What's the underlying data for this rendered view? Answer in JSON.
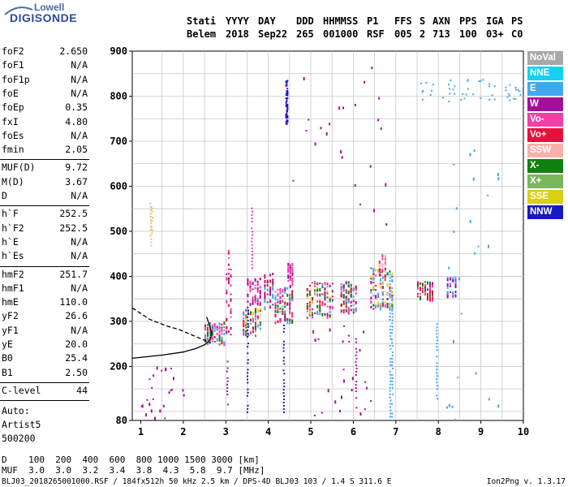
{
  "logo": {
    "top": "Lowell",
    "main": "DIGISONDE"
  },
  "header": {
    "labels": [
      "Stati",
      "YYYY",
      "DAY",
      "DDD",
      "HHMMSS",
      "P1",
      "FFS",
      "S",
      "AXN",
      "PPS",
      "IGA",
      "PS"
    ],
    "values": [
      "Belem",
      "2018",
      "Sep22",
      "265",
      "001000",
      "RSF",
      "005",
      "2",
      "713",
      "100",
      "03+",
      "C0"
    ]
  },
  "params": {
    "group1": [
      {
        "name": "foF2",
        "value": "2.650"
      },
      {
        "name": "foF1",
        "value": "N/A"
      },
      {
        "name": "foF1p",
        "value": "N/A"
      },
      {
        "name": "foE",
        "value": "N/A"
      },
      {
        "name": "foEp",
        "value": "0.35"
      },
      {
        "name": "fxI",
        "value": "4.80"
      },
      {
        "name": "foEs",
        "value": "N/A"
      },
      {
        "name": "fmin",
        "value": "2.05"
      }
    ],
    "group2": [
      {
        "name": "MUF(D)",
        "value": "9.72"
      },
      {
        "name": "M(D)",
        "value": "3.67"
      },
      {
        "name": "D",
        "value": "N/A"
      }
    ],
    "group3": [
      {
        "name": "h`F",
        "value": "252.5"
      },
      {
        "name": "h`F2",
        "value": "252.5"
      },
      {
        "name": "h`E",
        "value": "N/A"
      },
      {
        "name": "h`Es",
        "value": "N/A"
      }
    ],
    "group4": [
      {
        "name": "hmF2",
        "value": "251.7"
      },
      {
        "name": "hmF1",
        "value": "N/A"
      },
      {
        "name": "hmE",
        "value": "110.0"
      },
      {
        "name": "yF2",
        "value": "26.6"
      },
      {
        "name": "yF1",
        "value": "N/A"
      },
      {
        "name": "yE",
        "value": "20.0"
      },
      {
        "name": "B0",
        "value": "25.4"
      },
      {
        "name": "B1",
        "value": "2.50"
      }
    ],
    "group5": [
      {
        "name": "C-level",
        "value": "44"
      }
    ]
  },
  "autoscale": {
    "line1": "Auto:",
    "line2": "Artist5",
    "line3": "500200"
  },
  "legend": [
    {
      "label": "NoVal",
      "color": "#a8a8a8"
    },
    {
      "label": "NNE",
      "color": "#16d0f0"
    },
    {
      "label": "E",
      "color": "#40a8f0"
    },
    {
      "label": "W",
      "color": "#a0109a"
    },
    {
      "label": "Vo-",
      "color": "#f040a8"
    },
    {
      "label": "Vo+",
      "color": "#e8103c"
    },
    {
      "label": "SSW",
      "color": "#f8b0a8"
    },
    {
      "label": "X-",
      "color": "#108010"
    },
    {
      "label": "X+",
      "color": "#78b858"
    },
    {
      "label": "SSE",
      "color": "#d8d010"
    },
    {
      "label": "NNW",
      "color": "#1818c0"
    }
  ],
  "footer": {
    "d_row": "D    100  200  400  600  800 1000 1500 3000 [km]",
    "muf_row": "MUF  3.0  3.0  3.2  3.4  3.8  4.3  5.8  9.7 [MHz]",
    "file_info": "BLJ03_2018265001000.RSF / 184fx512h 50 kHz 2.5 km / DPS-4D BLJ03 103 / 1.4 S 311.6 E",
    "version": "Ion2Png v. 1.3.17"
  },
  "chart_data": {
    "type": "scatter",
    "xlim": [
      0.8,
      10.0
    ],
    "ylim": [
      80,
      900
    ],
    "x_ticks": [
      "1",
      "2",
      "3",
      "4",
      "5",
      "6",
      "7",
      "8",
      "9",
      "10"
    ],
    "y_ticks": [
      "80",
      "200",
      "300",
      "400",
      "500",
      "600",
      "700",
      "800",
      "900"
    ],
    "y_tick_values": [
      80,
      200,
      300,
      400,
      500,
      600,
      700,
      800,
      900
    ],
    "grid": true,
    "grid_x_minor": [
      1.5,
      2,
      2.5,
      3,
      3.5,
      4,
      4.5,
      5,
      5.5,
      6,
      6.5,
      7,
      7.5,
      8,
      8.5,
      9,
      9.5
    ],
    "grid_y_minor": [
      100,
      150,
      200,
      250,
      300,
      350,
      400,
      450,
      500,
      550,
      600,
      650,
      700,
      750,
      800,
      850
    ],
    "clusters": [
      {
        "x": [
          2.5,
          3.0
        ],
        "y": [
          250,
          300
        ],
        "colors": [
          "#e8103c",
          "#f040a8",
          "#40a8f0",
          "#108010"
        ]
      },
      {
        "x": [
          3.0,
          3.15
        ],
        "y": [
          270,
          460
        ],
        "colors": [
          "#a0109a",
          "#f040a8",
          "#e8103c"
        ]
      },
      {
        "x": [
          3.4,
          3.85
        ],
        "y": [
          270,
          330
        ],
        "colors": [
          "#108010",
          "#f040a8",
          "#40a8f0",
          "#d8d010",
          "#e8103c"
        ]
      },
      {
        "x": [
          3.5,
          3.85
        ],
        "y": [
          340,
          400
        ],
        "colors": [
          "#a0109a",
          "#f040a8"
        ]
      },
      {
        "x": [
          3.9,
          4.15
        ],
        "y": [
          330,
          410
        ],
        "colors": [
          "#a0109a",
          "#40a8f0",
          "#e8103c"
        ]
      },
      {
        "x": [
          4.15,
          4.6
        ],
        "y": [
          300,
          380
        ],
        "colors": [
          "#108010",
          "#a0109a",
          "#f040a8",
          "#40a8f0",
          "#e8103c"
        ]
      },
      {
        "x": [
          4.4,
          4.45
        ],
        "y": [
          740,
          840
        ],
        "colors": [
          "#1818c0",
          "#a0109a"
        ]
      },
      {
        "x": [
          4.45,
          4.6
        ],
        "y": [
          380,
          430
        ],
        "colors": [
          "#a0109a",
          "#f040a8"
        ]
      },
      {
        "x": [
          4.9,
          5.55
        ],
        "y": [
          310,
          390
        ],
        "colors": [
          "#108010",
          "#a0109a",
          "#e8103c",
          "#40a8f0",
          "#f040a8",
          "#d8d010"
        ]
      },
      {
        "x": [
          5.7,
          6.1
        ],
        "y": [
          320,
          390
        ],
        "colors": [
          "#108010",
          "#a0109a",
          "#e8103c",
          "#f040a8",
          "#40a8f0"
        ]
      },
      {
        "x": [
          6.4,
          6.95
        ],
        "y": [
          330,
          420
        ],
        "colors": [
          "#e8103c",
          "#f040a8",
          "#a0109a",
          "#108010",
          "#40a8f0",
          "#d8d010"
        ]
      },
      {
        "x": [
          6.6,
          6.8
        ],
        "y": [
          400,
          450
        ],
        "colors": [
          "#f040a8",
          "#e8103c",
          "#f8b0a8"
        ]
      },
      {
        "x": [
          7.5,
          7.9
        ],
        "y": [
          350,
          390
        ],
        "colors": [
          "#a0109a",
          "#f040a8",
          "#e8103c",
          "#108010"
        ]
      },
      {
        "x": [
          8.2,
          8.45
        ],
        "y": [
          355,
          400
        ],
        "colors": [
          "#40a8f0",
          "#a0109a"
        ]
      }
    ],
    "columns": [
      {
        "x": 1.22,
        "y": [
          470,
          570
        ],
        "color": "#f8b0a8"
      },
      {
        "x": 1.25,
        "y": [
          490,
          560
        ],
        "color": "#d8d010"
      },
      {
        "x": 3.5,
        "y": [
          100,
          340
        ],
        "color": "#1818c0"
      },
      {
        "x": 4.35,
        "y": [
          100,
          300
        ],
        "color": "#1818c0"
      },
      {
        "x": 4.42,
        "y": [
          740,
          840
        ],
        "color": "#1818c0"
      },
      {
        "x": 6.85,
        "y": [
          90,
          420
        ],
        "color": "#40a8f0"
      },
      {
        "x": 6.9,
        "y": [
          90,
          340
        ],
        "color": "#40a8f0"
      },
      {
        "x": 7.95,
        "y": [
          130,
          310
        ],
        "color": "#40a8f0"
      },
      {
        "x": 6.05,
        "y": [
          110,
          270
        ],
        "color": "#a0109a"
      },
      {
        "x": 3.6,
        "y": [
          420,
          560
        ],
        "color": "#f040a8"
      },
      {
        "x": 3.02,
        "y": [
          110,
          220
        ],
        "color": "#a0109a"
      }
    ],
    "sparse_top_right": {
      "x": [
        7.5,
        10.0
      ],
      "y": [
        790,
        840
      ],
      "color": "#40a8f0"
    },
    "sparse_extra": [
      {
        "x": [
          1.0,
          2.0
        ],
        "y": [
          80,
          200
        ],
        "color": "#a0109a"
      },
      {
        "x": [
          8.0,
          9.4
        ],
        "y": [
          80,
          700
        ],
        "color": "#40a8f0"
      },
      {
        "x": [
          5.0,
          6.4
        ],
        "y": [
          80,
          300
        ],
        "color": "#a0109a"
      },
      {
        "x": [
          4.5,
          6.8
        ],
        "y": [
          500,
          880
        ],
        "color": "#a0109a"
      }
    ],
    "profile_solid": {
      "x": [
        0.8,
        1.5,
        2.0,
        2.3,
        2.5,
        2.6,
        2.65,
        2.66,
        2.62,
        2.55
      ],
      "y": [
        218,
        225,
        232,
        240,
        248,
        256,
        264,
        275,
        290,
        310
      ]
    },
    "profile_dashed": {
      "x": [
        0.8,
        1.2,
        1.6,
        1.9,
        2.2,
        2.45,
        2.6,
        2.62
      ],
      "y": [
        330,
        305,
        290,
        282,
        270,
        260,
        254,
        252
      ]
    }
  }
}
